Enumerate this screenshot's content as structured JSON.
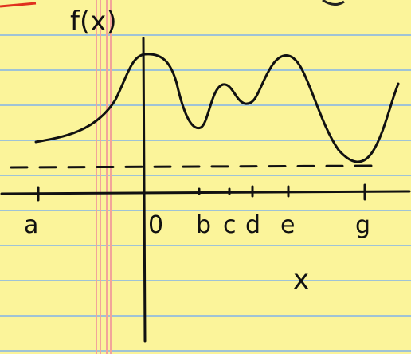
{
  "labels": {
    "y_axis": "f(x)",
    "x_axis": "x",
    "ticks": [
      "a",
      "0",
      "b",
      "c",
      "d",
      "e",
      "g"
    ]
  }
}
